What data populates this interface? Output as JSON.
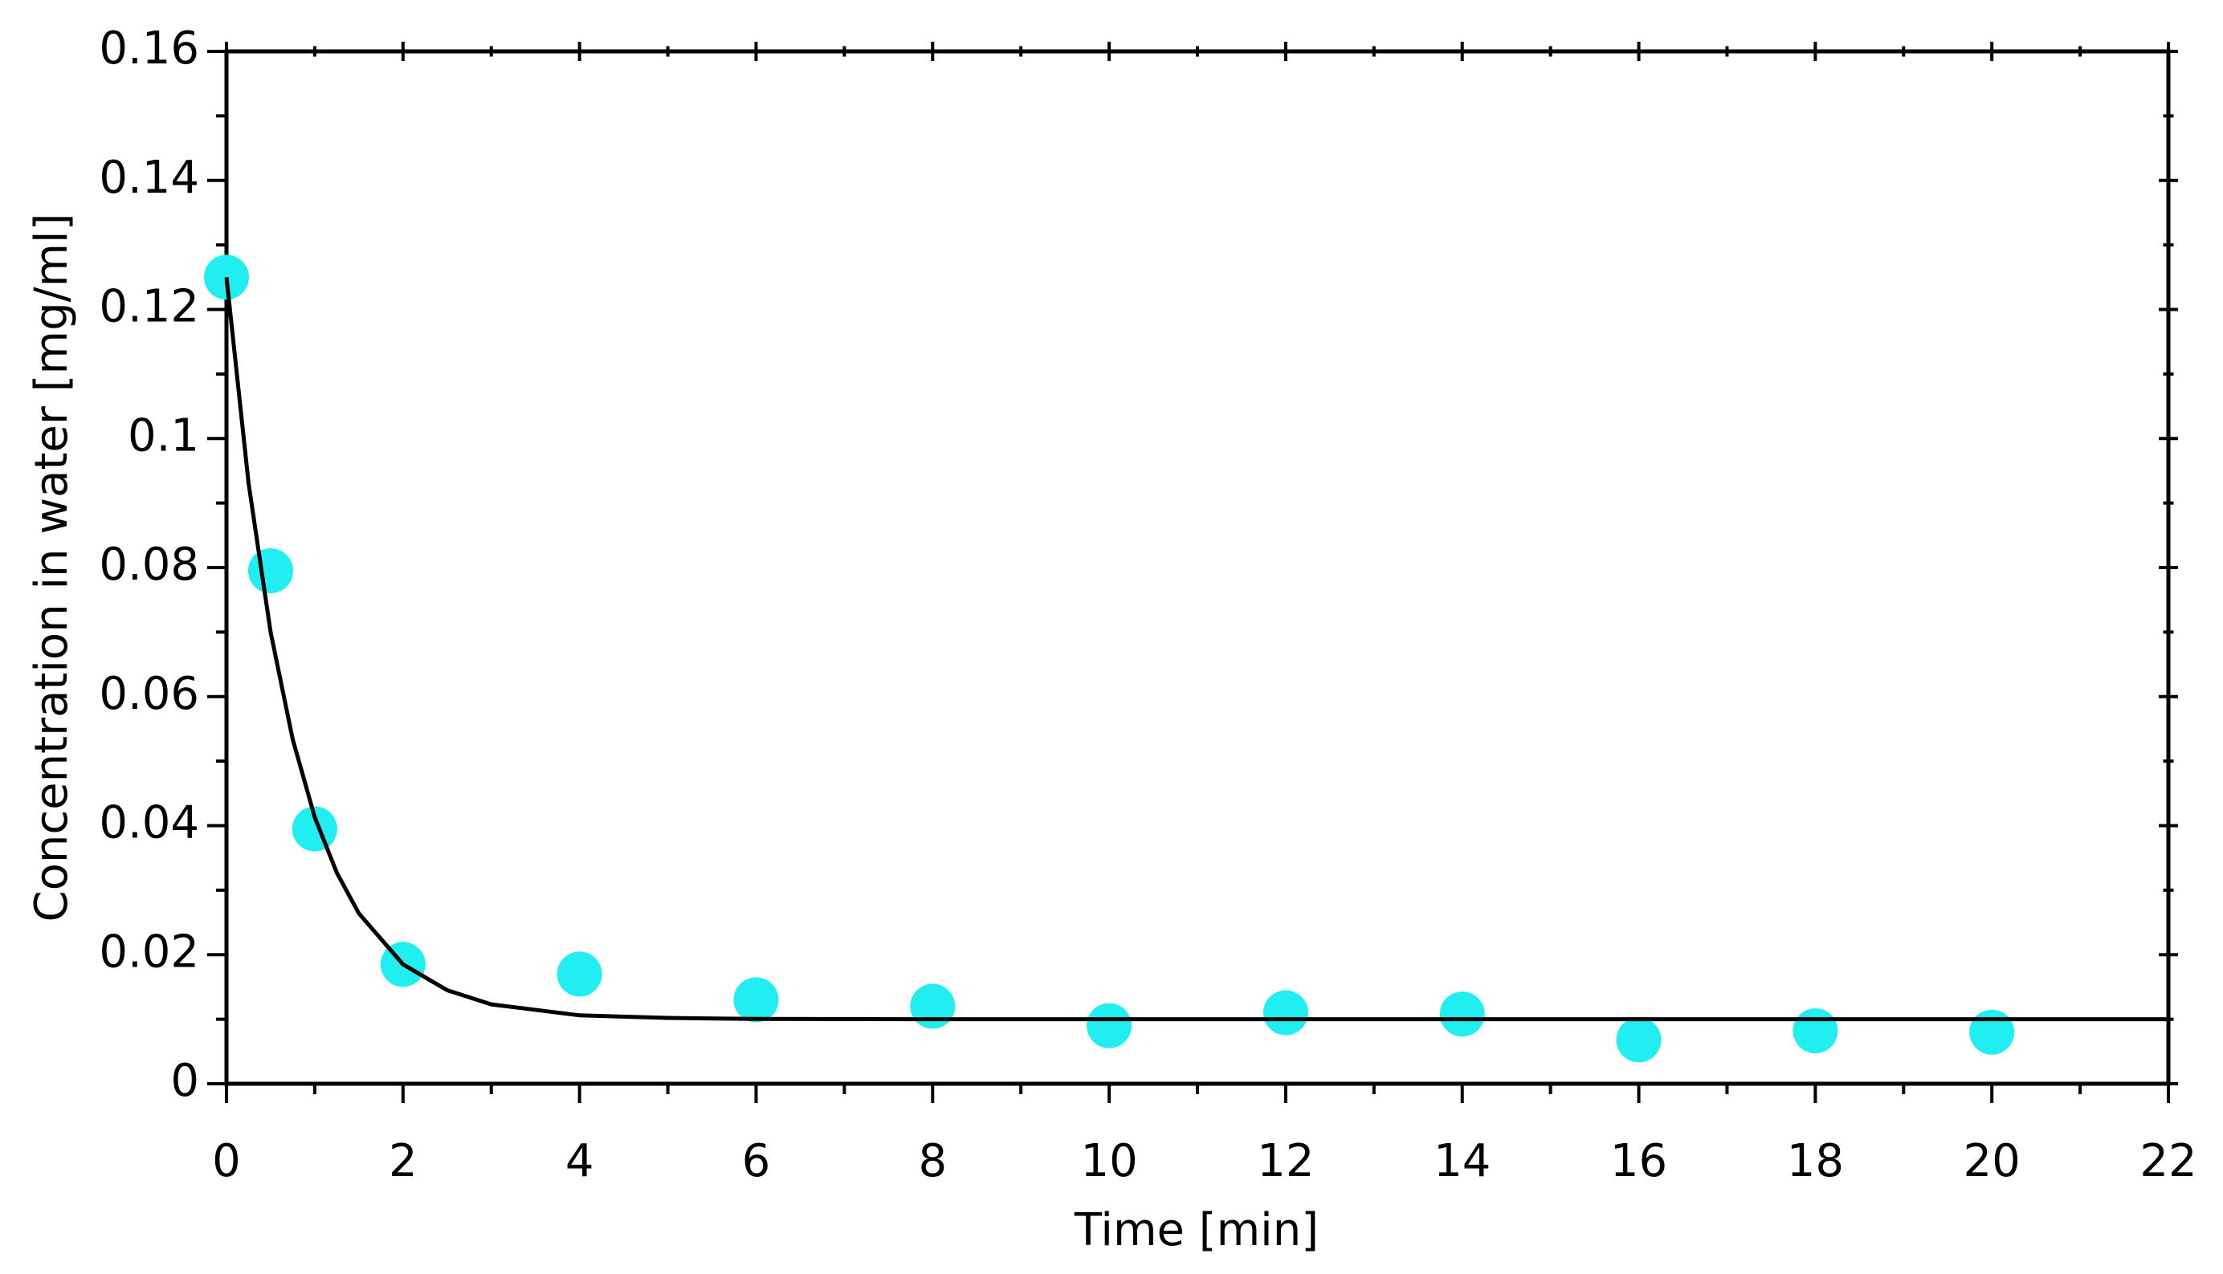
{
  "chart_data": {
    "type": "scatter",
    "x_label": "Time [min]",
    "y_label": "Concentration in water [mg/ml]",
    "x": [
      0,
      0.5,
      1,
      2,
      4,
      6,
      8,
      10,
      12,
      14,
      16,
      18,
      20
    ],
    "values": [
      0.125,
      0.0795,
      0.0395,
      0.0185,
      0.017,
      0.013,
      0.012,
      0.009,
      0.011,
      0.0108,
      0.0068,
      0.0082,
      0.008
    ],
    "color": "#20eef0",
    "fit": {
      "x": [
        0,
        0.25,
        0.5,
        0.75,
        1,
        1.25,
        1.5,
        2,
        2.5,
        3,
        4,
        5,
        6,
        8,
        22
      ],
      "values": [
        0.125,
        0.0931,
        0.07,
        0.0534,
        0.0413,
        0.0327,
        0.0264,
        0.0185,
        0.0145,
        0.0123,
        0.0106,
        0.0102,
        0.01004,
        0.01,
        0.01
      ],
      "color": "#000000"
    },
    "xlim": [
      0,
      22
    ],
    "xticks": [
      0,
      2,
      4,
      6,
      8,
      10,
      12,
      14,
      16,
      18,
      20,
      22
    ],
    "ylim": [
      0,
      0.16
    ],
    "yticks": [
      0,
      0.02,
      0.04,
      0.06,
      0.08,
      0.1,
      0.12,
      0.14,
      0.16
    ]
  }
}
